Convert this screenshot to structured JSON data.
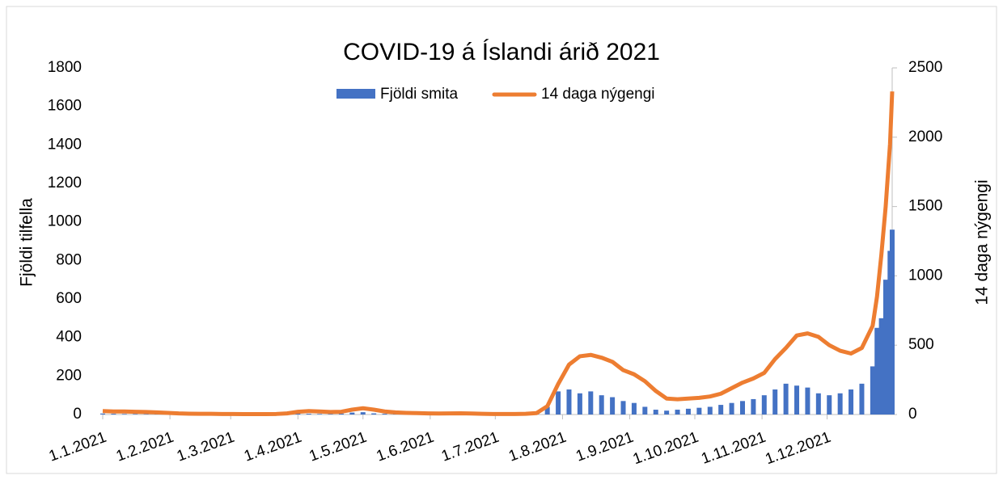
{
  "chart_data": {
    "type": "bar-line",
    "title": "COVID-19 á Íslandi árið 2021",
    "ylabel": "Fjöldi tilfella",
    "y2label": "14 daga nýgengi",
    "xlim": [
      1,
      365
    ],
    "xticks": [
      {
        "value": 1,
        "label": "1.1.2021"
      },
      {
        "value": 32,
        "label": "1.2.2021"
      },
      {
        "value": 60,
        "label": "1.3.2021"
      },
      {
        "value": 91,
        "label": "1.4.2021"
      },
      {
        "value": 121,
        "label": "1.5.2021"
      },
      {
        "value": 152,
        "label": "1.6.2021"
      },
      {
        "value": 182,
        "label": "1.7.2021"
      },
      {
        "value": 213,
        "label": "1.8.2021"
      },
      {
        "value": 244,
        "label": "1.9.2021"
      },
      {
        "value": 274,
        "label": "1.10.2021"
      },
      {
        "value": 305,
        "label": "1.11.2021"
      },
      {
        "value": 335,
        "label": "1.12.2021"
      }
    ],
    "ylim": [
      0,
      1800
    ],
    "yticks": [
      0,
      200,
      400,
      600,
      800,
      1000,
      1200,
      1400,
      1600,
      1800
    ],
    "y2lim": [
      0,
      2500
    ],
    "y2ticks": [
      0,
      500,
      1000,
      1500,
      2000,
      2500
    ],
    "legend": "top",
    "x": [
      1,
      6,
      11,
      16,
      21,
      26,
      31,
      36,
      41,
      46,
      51,
      56,
      61,
      66,
      71,
      76,
      81,
      86,
      91,
      96,
      101,
      106,
      111,
      116,
      121,
      126,
      131,
      136,
      141,
      146,
      151,
      156,
      161,
      166,
      171,
      176,
      181,
      186,
      191,
      196,
      201,
      206,
      211,
      216,
      221,
      226,
      231,
      236,
      241,
      246,
      251,
      256,
      261,
      266,
      271,
      276,
      281,
      286,
      291,
      296,
      301,
      306,
      311,
      316,
      321,
      326,
      331,
      336,
      341,
      346,
      351,
      356,
      358,
      360,
      362,
      364,
      365
    ],
    "series": [
      {
        "name": "Fjöldi smita",
        "color": "#4472c4",
        "kind": "bar",
        "values": [
          5,
          4,
          3,
          3,
          2,
          2,
          2,
          1,
          1,
          1,
          1,
          1,
          0,
          0,
          1,
          0,
          1,
          3,
          5,
          4,
          3,
          3,
          5,
          10,
          12,
          6,
          4,
          3,
          2,
          2,
          1,
          1,
          2,
          1,
          1,
          1,
          1,
          1,
          2,
          3,
          8,
          40,
          120,
          130,
          110,
          120,
          100,
          90,
          70,
          60,
          40,
          25,
          20,
          25,
          30,
          35,
          40,
          50,
          60,
          70,
          80,
          100,
          130,
          160,
          150,
          140,
          110,
          100,
          110,
          130,
          160,
          250,
          450,
          500,
          700,
          850,
          960
        ]
      },
      {
        "name": "14 daga nýgengi",
        "color": "#ed7d31",
        "kind": "line",
        "axis": "y2",
        "values": [
          25,
          22,
          22,
          20,
          18,
          15,
          12,
          8,
          6,
          5,
          5,
          4,
          4,
          3,
          3,
          3,
          4,
          8,
          20,
          25,
          22,
          18,
          20,
          35,
          45,
          35,
          22,
          15,
          12,
          10,
          8,
          7,
          8,
          9,
          7,
          5,
          4,
          4,
          4,
          5,
          10,
          60,
          220,
          360,
          420,
          430,
          410,
          380,
          320,
          290,
          240,
          170,
          115,
          110,
          115,
          120,
          130,
          150,
          190,
          230,
          260,
          300,
          400,
          480,
          570,
          585,
          560,
          500,
          460,
          440,
          480,
          640,
          850,
          1150,
          1500,
          1950,
          2330
        ]
      }
    ]
  }
}
